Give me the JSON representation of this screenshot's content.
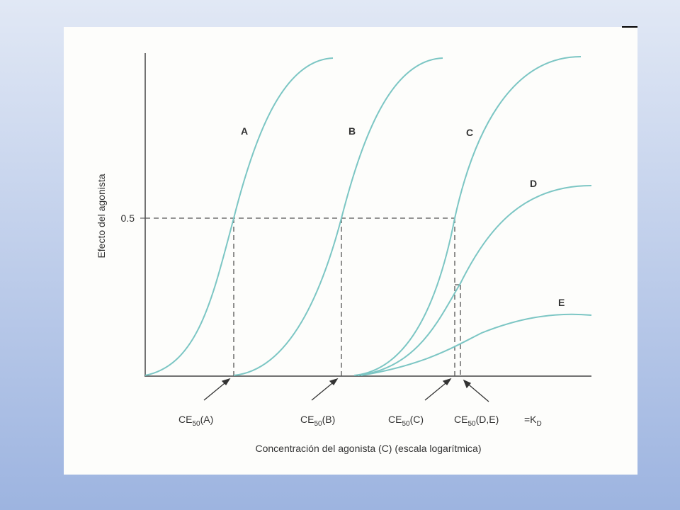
{
  "figure": {
    "y_axis_label": "Efecto del agonista",
    "y_tick": "0.5",
    "x_axis_label": "Concentración del agonista (C) (escala logarítmica)",
    "curves": [
      "A",
      "B",
      "C",
      "D",
      "E"
    ],
    "markers": [
      {
        "prefix": "CE",
        "sub": "50",
        "suffix": "(A)"
      },
      {
        "prefix": "CE",
        "sub": "50",
        "suffix": "(B)"
      },
      {
        "prefix": "CE",
        "sub": "50",
        "suffix": "(C)"
      },
      {
        "prefix": "CE",
        "sub": "50",
        "suffix": "(D,E)"
      }
    ],
    "kd": {
      "text": "=K",
      "sub": "D"
    }
  }
}
